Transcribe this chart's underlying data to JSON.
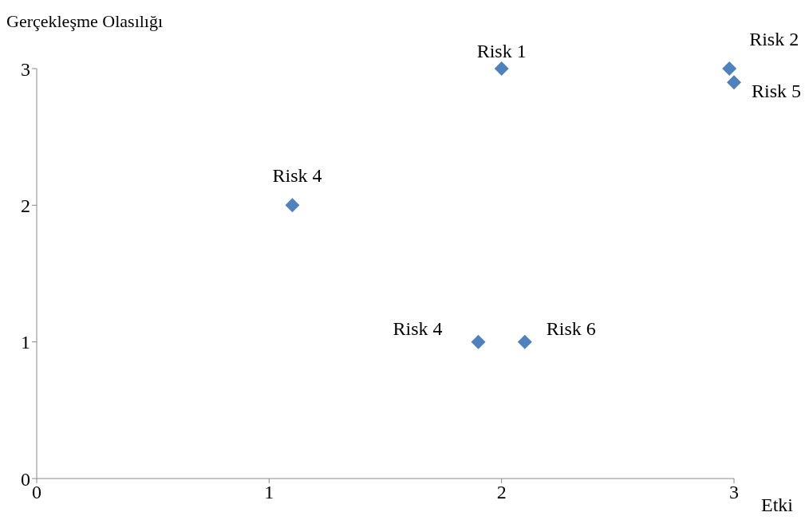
{
  "chart_data": {
    "type": "scatter",
    "xlabel": "Etki",
    "ylabel": "Gerçekleşme Olasılığı",
    "x": [
      2.0,
      2.98,
      3.0,
      1.1,
      1.9,
      2.1
    ],
    "series": [
      {
        "color": "#4f81bd",
        "values": [
          3,
          3,
          2.9,
          2,
          1,
          1
        ]
      }
    ],
    "xlim": [
      0,
      3
    ],
    "xticks": [
      0,
      1,
      2,
      3
    ],
    "ylim": [
      0,
      3
    ],
    "yticks": [
      0,
      1,
      2,
      3
    ],
    "marker": "diamond",
    "grid": false,
    "legend": false,
    "annotations": [
      {
        "text": "Risk 1",
        "x": 2.0,
        "y": 3
      },
      {
        "text": "Risk 2",
        "x": 2.98,
        "y": 3
      },
      {
        "text": "Risk 5",
        "x": 3.0,
        "y": 2.9
      },
      {
        "text": "Risk 4",
        "x": 1.1,
        "y": 2
      },
      {
        "text": "Risk 4",
        "x": 1.9,
        "y": 1
      },
      {
        "text": "Risk 6",
        "x": 2.1,
        "y": 1
      }
    ]
  }
}
